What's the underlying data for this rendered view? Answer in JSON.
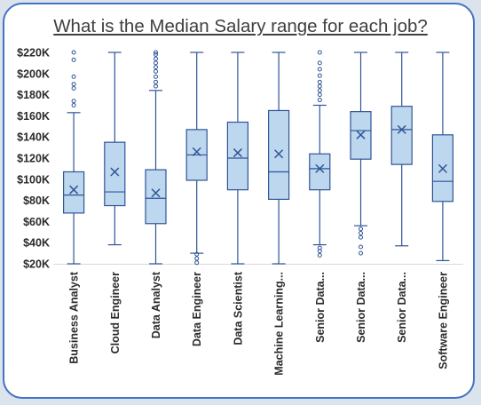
{
  "chart_data": {
    "type": "box",
    "title": "What is the Median Salary range for each job?",
    "yticks": [
      "$20K",
      "$40K",
      "$60K",
      "$80K",
      "$100K",
      "$120K",
      "$140K",
      "$160K",
      "$180K",
      "$200K",
      "$220K"
    ],
    "ylim": [
      20000,
      220000
    ],
    "grid": false,
    "legend": "none",
    "colors": {
      "box_fill": "#bdd7ee",
      "box_stroke": "#2f5597",
      "frame": "#4472c4"
    },
    "categories": [
      "Business Analyst",
      "Cloud Engineer",
      "Data Analyst",
      "Data Engineer",
      "Data Scientist",
      "Machine Learning...",
      "Senior Data...",
      "Senior Data...",
      "Senior Data...",
      "Software Engineer"
    ],
    "series": [
      {
        "category": "Business Analyst",
        "min": 20000,
        "q1": 68000,
        "median": 85000,
        "q3": 107000,
        "max": 163000,
        "mean": 90000,
        "outliers": [
          170000,
          174000,
          186000,
          190000,
          197000,
          213000,
          220000
        ]
      },
      {
        "category": "Cloud Engineer",
        "min": 38000,
        "q1": 75000,
        "median": 88000,
        "q3": 135000,
        "max": 220000,
        "mean": 107000,
        "outliers": []
      },
      {
        "category": "Data Analyst",
        "min": 20000,
        "q1": 58000,
        "median": 82000,
        "q3": 109000,
        "max": 184000,
        "mean": 87000,
        "outliers": [
          188000,
          192000,
          197000,
          202000,
          206000,
          210000,
          214000,
          218000,
          220000
        ]
      },
      {
        "category": "Data Engineer",
        "min": 30000,
        "q1": 99000,
        "median": 123000,
        "q3": 147000,
        "max": 220000,
        "mean": 126000,
        "outliers": [
          29000,
          25000,
          21000
        ]
      },
      {
        "category": "Data Scientist",
        "min": 20000,
        "q1": 90000,
        "median": 120000,
        "q3": 154000,
        "max": 220000,
        "mean": 125000,
        "outliers": []
      },
      {
        "category": "Machine Learning...",
        "min": 20000,
        "q1": 81000,
        "median": 107000,
        "q3": 165000,
        "max": 220000,
        "mean": 124000,
        "outliers": []
      },
      {
        "category": "Senior Data...",
        "min": 38000,
        "q1": 90000,
        "median": 110000,
        "q3": 124000,
        "max": 170000,
        "mean": 110000,
        "outliers": [
          35000,
          32000,
          28000,
          175000,
          180000,
          184000,
          188000,
          192000,
          198000,
          204000,
          210000,
          220000
        ]
      },
      {
        "category": "Senior Data...",
        "min": 56000,
        "q1": 119000,
        "median": 146000,
        "q3": 164000,
        "max": 220000,
        "mean": 142000,
        "outliers": [
          53000,
          49000,
          45000,
          36000,
          30000
        ]
      },
      {
        "category": "Senior Data...",
        "min": 37000,
        "q1": 114000,
        "median": 147000,
        "q3": 169000,
        "max": 220000,
        "mean": 147000,
        "outliers": []
      },
      {
        "category": "Software Engineer",
        "min": 23000,
        "q1": 79000,
        "median": 98000,
        "q3": 142000,
        "max": 220000,
        "mean": 110000,
        "outliers": []
      }
    ]
  }
}
